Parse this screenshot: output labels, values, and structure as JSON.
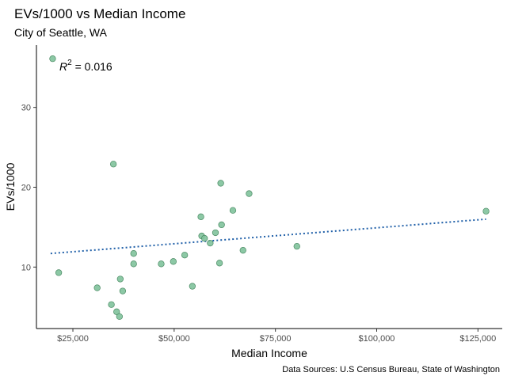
{
  "chart_data": {
    "type": "scatter",
    "title": "EVs/1000 vs Median Income",
    "subtitle": "City of Seattle, WA",
    "xlabel": "Median Income",
    "ylabel": "EVs/1000",
    "caption": "Data Sources: U.S Census Bureau, State of Washington",
    "annotation": {
      "r2_symbol": "R",
      "r2_exponent": "2",
      "r2_value": " = 0.016"
    },
    "xlim": [
      16000,
      131000
    ],
    "ylim": [
      2.3,
      37.8
    ],
    "x_ticks": [
      25000,
      50000,
      75000,
      100000,
      125000
    ],
    "x_tick_labels": [
      "$25,000",
      "$50,000",
      "$75,000",
      "$100,000",
      "$125,000"
    ],
    "y_ticks": [
      10,
      20,
      30
    ],
    "y_tick_labels": [
      "10",
      "20",
      "30"
    ],
    "grid": false,
    "points": [
      {
        "x": 20000,
        "y": 36.1
      },
      {
        "x": 21500,
        "y": 9.3
      },
      {
        "x": 31000,
        "y": 7.4
      },
      {
        "x": 34500,
        "y": 5.3
      },
      {
        "x": 35000,
        "y": 22.9
      },
      {
        "x": 35800,
        "y": 4.4
      },
      {
        "x": 36500,
        "y": 3.8
      },
      {
        "x": 36700,
        "y": 8.5
      },
      {
        "x": 37300,
        "y": 7.0
      },
      {
        "x": 40000,
        "y": 11.7
      },
      {
        "x": 40000,
        "y": 10.4
      },
      {
        "x": 46800,
        "y": 10.4
      },
      {
        "x": 49800,
        "y": 10.7
      },
      {
        "x": 52600,
        "y": 11.5
      },
      {
        "x": 54500,
        "y": 7.6
      },
      {
        "x": 56600,
        "y": 16.3
      },
      {
        "x": 56800,
        "y": 13.9
      },
      {
        "x": 57500,
        "y": 13.6
      },
      {
        "x": 58900,
        "y": 13.0
      },
      {
        "x": 60200,
        "y": 14.3
      },
      {
        "x": 61200,
        "y": 10.5
      },
      {
        "x": 61500,
        "y": 20.5
      },
      {
        "x": 61700,
        "y": 15.3
      },
      {
        "x": 64500,
        "y": 17.1
      },
      {
        "x": 67000,
        "y": 12.1
      },
      {
        "x": 68500,
        "y": 19.2
      },
      {
        "x": 80300,
        "y": 12.6
      },
      {
        "x": 127000,
        "y": 17.0
      }
    ],
    "trendline": {
      "style": "dotted",
      "x": [
        19500,
        127000
      ],
      "y": [
        11.7,
        16.0
      ]
    },
    "colors": {
      "point_fill": "#7fc29b",
      "point_stroke": "#4a8a63",
      "trendline": "#1f5fa8",
      "axis": "#000000"
    }
  }
}
